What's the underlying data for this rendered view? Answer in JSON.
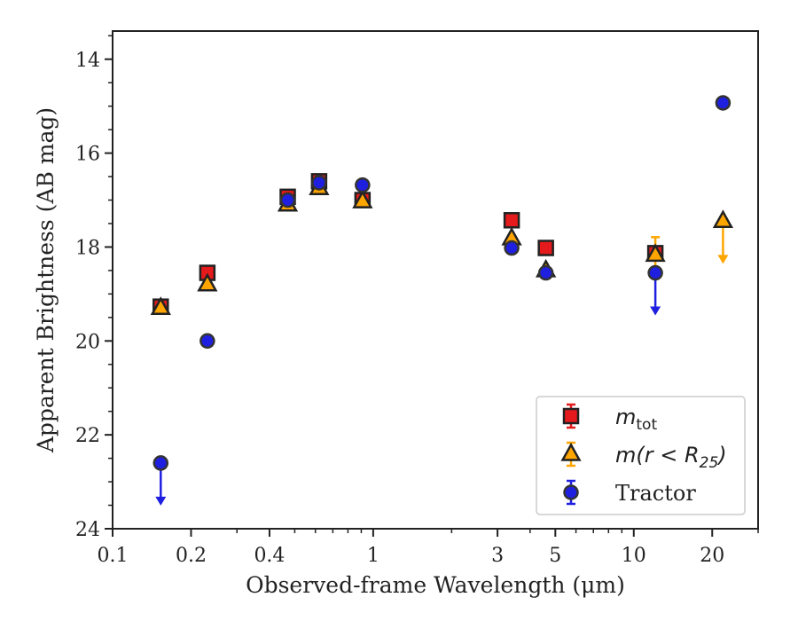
{
  "chart_data": {
    "type": "scatter",
    "xlabel": "Observed-frame Wavelength (μm)",
    "ylabel": "Apparent Brightness (AB mag)",
    "x_scale": "log",
    "xlim": [
      0.1,
      30
    ],
    "ylim": [
      24,
      13.4
    ],
    "y_inverted": true,
    "x_ticks": [
      0.1,
      0.2,
      0.4,
      1,
      3,
      5,
      10,
      20
    ],
    "x_tick_labels": [
      "0.1",
      "0.2",
      "0.4",
      "1",
      "3",
      "5",
      "10",
      "20"
    ],
    "y_ticks": [
      14,
      16,
      18,
      20,
      22,
      24
    ],
    "y_tick_labels": [
      "14",
      "16",
      "18",
      "20",
      "22",
      "24"
    ],
    "grid": false,
    "legend_position": "lower-right",
    "series": [
      {
        "name": "m_tot",
        "legend_text": {
          "base": "m",
          "sub": "tot"
        },
        "marker": "square",
        "color": "#e41a1c",
        "edge_color": "#222222",
        "x": [
          0.153,
          0.231,
          0.47,
          0.62,
          0.91,
          3.4,
          4.6,
          12.1
        ],
        "y": [
          19.27,
          18.55,
          16.93,
          16.6,
          17.0,
          17.43,
          18.02,
          18.13
        ],
        "yerr": [
          0.03,
          0.03,
          0.03,
          0.03,
          0.03,
          0.03,
          0.03,
          0.03
        ],
        "upper_limit": [
          false,
          false,
          false,
          false,
          false,
          false,
          false,
          false
        ]
      },
      {
        "name": "m(r < R25)",
        "legend_text": {
          "base": "m(r < R",
          "sub": "25",
          "tail": ")"
        },
        "marker": "triangle",
        "color": "#ffa500",
        "edge_color": "#222222",
        "x": [
          0.153,
          0.231,
          0.47,
          0.62,
          0.91,
          3.4,
          4.6,
          12.1,
          22.0
        ],
        "y": [
          19.3,
          18.8,
          17.1,
          16.75,
          17.03,
          17.82,
          18.5,
          18.17,
          17.45
        ],
        "yerr": [
          0.03,
          0.03,
          0.03,
          0.03,
          0.03,
          0.03,
          0.03,
          0.38,
          0.0
        ],
        "upper_limit": [
          false,
          false,
          false,
          false,
          false,
          false,
          false,
          false,
          true
        ]
      },
      {
        "name": "Tractor",
        "legend_text": {
          "base": "Tractor"
        },
        "marker": "circle",
        "color": "#1f1fe0",
        "edge_color": "#333333",
        "x": [
          0.153,
          0.231,
          0.47,
          0.62,
          0.91,
          3.4,
          4.6,
          12.1,
          22.0
        ],
        "y": [
          22.6,
          20.0,
          17.0,
          16.63,
          16.68,
          18.02,
          18.55,
          18.55,
          14.93
        ],
        "yerr": [
          0.03,
          0.03,
          0.03,
          0.03,
          0.03,
          0.03,
          0.03,
          0.03,
          0.03
        ],
        "upper_limit": [
          true,
          false,
          false,
          false,
          false,
          false,
          false,
          true,
          false
        ]
      }
    ]
  }
}
